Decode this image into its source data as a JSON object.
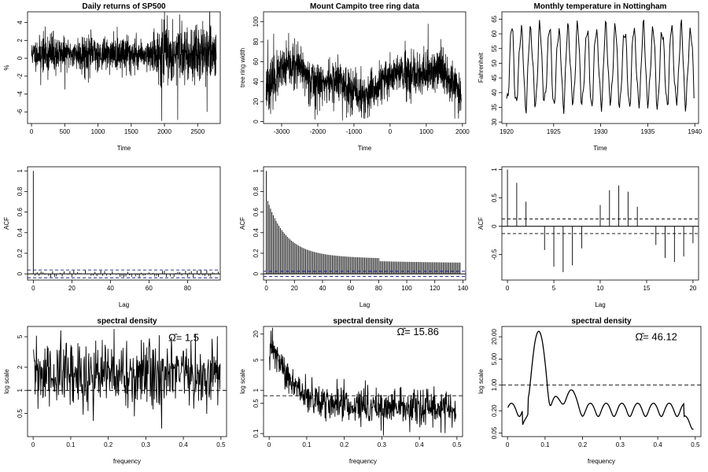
{
  "chart_data": [
    {
      "id": "sp500",
      "type": "line",
      "title": "Daily returns of SP500",
      "xlabel": "Time",
      "ylabel": "%",
      "xlim": [
        -60,
        2840
      ],
      "ylim": [
        -7.3,
        5.2
      ],
      "xticks": [
        0,
        500,
        1000,
        1500,
        2000,
        2500
      ],
      "yticks": [
        -6,
        -4,
        -2,
        0,
        2,
        4
      ],
      "seed": 11,
      "n": 1400,
      "x_start": 0,
      "x_end": 2780,
      "y_base": 0.5,
      "y_sd": 0.75,
      "spikes": [
        [
          1960,
          -7.0
        ],
        [
          2040,
          4.8
        ],
        [
          2200,
          -6.9
        ],
        [
          2230,
          4.9
        ],
        [
          2640,
          -6.0
        ],
        [
          2680,
          4.5
        ],
        [
          500,
          -3.5
        ],
        [
          140,
          -3.0
        ]
      ]
    },
    {
      "id": "campito",
      "type": "line",
      "title": "Mount Campito tree ring data",
      "xlabel": "Time",
      "ylabel": "tree ring width",
      "xlim": [
        -3500,
        2090
      ],
      "ylim": [
        -2,
        110
      ],
      "xticks": [
        -3000,
        -2000,
        -1000,
        0,
        1000,
        2000
      ],
      "yticks": [
        0,
        20,
        40,
        60,
        80,
        100
      ],
      "seed": 23,
      "n": 1400,
      "x_start": -3435,
      "x_end": 1969,
      "y_base": 40,
      "y_sd": 11,
      "spikes": [
        [
          1050,
          98
        ],
        [
          -3220,
          88
        ],
        [
          -2080,
          2
        ],
        [
          -1320,
          1
        ],
        [
          -3380,
          82
        ]
      ]
    },
    {
      "id": "nottem",
      "type": "line",
      "title": "Monthly temperature in Nottingham",
      "xlabel": "Time",
      "ylabel": "Fahrenheit",
      "xlim": [
        1919.5,
        1940.4
      ],
      "ylim": [
        29.5,
        67.5
      ],
      "xticks": [
        1920,
        1925,
        1930,
        1935,
        1940
      ],
      "yticks": [
        30,
        35,
        40,
        45,
        50,
        55,
        60,
        65
      ],
      "x_start": 1920,
      "x_end": 1939.92,
      "y_mean": 49,
      "y_amp": 13
    },
    {
      "id": "acf1",
      "type": "bar",
      "title": "",
      "xlabel": "Lag",
      "ylabel": "ACF",
      "xlim": [
        -3,
        97
      ],
      "ylim": [
        -0.06,
        1.04
      ],
      "xticks": [
        0,
        20,
        40,
        60,
        80
      ],
      "yticks": [
        0.0,
        0.2,
        0.4,
        0.6,
        0.8,
        1.0
      ],
      "conf": 0.038,
      "lags": 96,
      "pattern": "noise",
      "seed": 5
    },
    {
      "id": "acf2",
      "type": "bar",
      "title": "",
      "xlabel": "Lag",
      "ylabel": "ACF",
      "xlim": [
        -2,
        142
      ],
      "ylim": [
        -0.06,
        1.04
      ],
      "xticks": [
        0,
        20,
        40,
        60,
        80,
        100,
        120,
        140
      ],
      "yticks": [
        0.0,
        0.2,
        0.4,
        0.6,
        0.8,
        1.0
      ],
      "conf": 0.025,
      "lags": 138,
      "pattern": "decay"
    },
    {
      "id": "acf3",
      "type": "bar",
      "title": "",
      "xlabel": "Lag",
      "ylabel": "ACF",
      "xlim": [
        -0.6,
        20.6
      ],
      "ylim": [
        -0.95,
        1.05
      ],
      "xticks": [
        0,
        5,
        10,
        15,
        20
      ],
      "yticks": [
        -0.5,
        0.0,
        0.5,
        1.0
      ],
      "conf": 0.13,
      "lags": 20,
      "pattern": "seasonal"
    },
    {
      "id": "spec1",
      "type": "line",
      "title": "spectral density",
      "xlabel": "frequency",
      "ylabel": "log scale",
      "xlim": [
        -0.015,
        0.515
      ],
      "ylim": [
        0.25,
        6.8
      ],
      "log_y": true,
      "xticks": [
        0.0,
        0.1,
        0.2,
        0.3,
        0.4,
        0.5
      ],
      "yticks": [
        0.5,
        1.0,
        2.0,
        5.0
      ],
      "ref": 1.0,
      "annotation": "Ω̂= 1.5",
      "annot_x": 0.36,
      "annot_y": 4.4,
      "seed": 31,
      "n": 460,
      "pattern": "flat"
    },
    {
      "id": "spec2",
      "type": "line",
      "title": "spectral density",
      "xlabel": "frequency",
      "ylabel": "log scale",
      "xlim": [
        -0.015,
        0.515
      ],
      "ylim": [
        0.085,
        30
      ],
      "log_y": true,
      "xticks": [
        0.0,
        0.1,
        0.2,
        0.3,
        0.4,
        0.5
      ],
      "yticks": [
        0.1,
        0.5,
        1.0,
        5.0,
        20.0
      ],
      "ref": 0.75,
      "annotation": "Ω̂= 15.86",
      "annot_x": 0.34,
      "annot_y": 19,
      "seed": 47,
      "n": 640,
      "pattern": "decay"
    },
    {
      "id": "spec3",
      "type": "line",
      "title": "spectral density",
      "xlabel": "frequency",
      "ylabel": "log scale",
      "xlim": [
        -0.015,
        0.515
      ],
      "ylim": [
        0.04,
        38
      ],
      "log_y": true,
      "xticks": [
        0.0,
        0.1,
        0.2,
        0.3,
        0.4,
        0.5
      ],
      "yticks": [
        0.05,
        0.2,
        1.0,
        5.0,
        20.0
      ],
      "ytick_labels": [
        "0.05",
        "0.20",
        "1.00",
        "5.00",
        "20.00"
      ],
      "ref": 1.0,
      "annotation": "Ω̂= 46.12",
      "annot_x": 0.34,
      "annot_y": 16,
      "pattern": "peaks"
    }
  ]
}
